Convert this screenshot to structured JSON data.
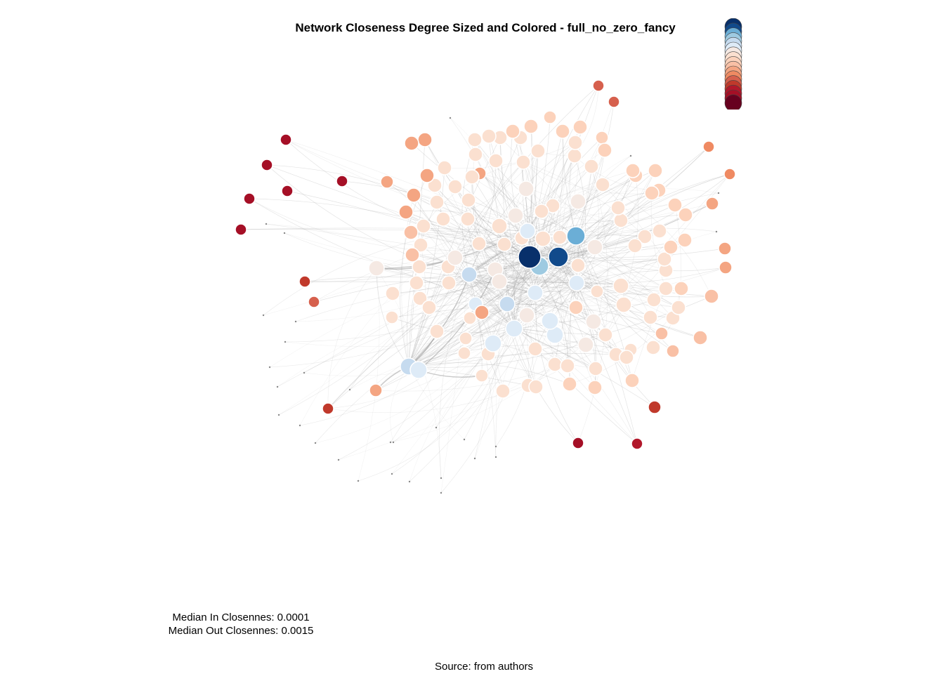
{
  "title": "Network Closeness Degree Sized and Colored - full_no_zero_fancy",
  "stats": {
    "median_in": "Median In Closennes: 0.0001",
    "median_out": "Median Out Closennes: 0.0015"
  },
  "source": "Source: from authors",
  "palette": [
    "#08306b",
    "#114a8b",
    "#6baed6",
    "#9ecae1",
    "#c6dbef",
    "#deebf7",
    "#f5e9e3",
    "#fbe0d0",
    "#fcd2bb",
    "#f9c0a5",
    "#f4a582",
    "#ef8a62",
    "#d6604d",
    "#c0392b",
    "#b2182b",
    "#a50f26",
    "#67001f"
  ]
}
